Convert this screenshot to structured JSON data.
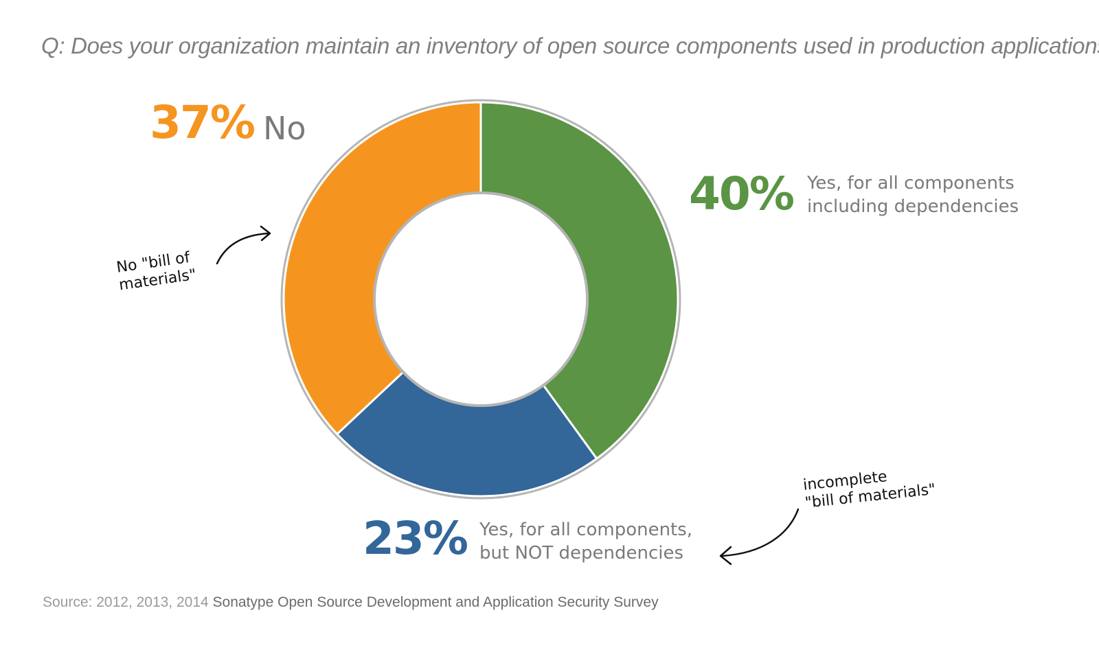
{
  "title": "Q: Does your organization maintain an inventory of open source components used in production applications?",
  "chart_data": {
    "type": "pie",
    "donut": true,
    "slices": [
      {
        "label": "Yes, for all components including dependencies",
        "label_lines": [
          "Yes, for all components",
          "including dependencies"
        ],
        "value": 40,
        "display": "40%",
        "color": "#5a9444"
      },
      {
        "label": "Yes, for all components, but NOT dependencies",
        "label_lines": [
          "Yes, for all components,",
          "but NOT dependencies"
        ],
        "value": 23,
        "display": "23%",
        "color": "#336699"
      },
      {
        "label": "No",
        "label_lines": [
          "No"
        ],
        "value": 37,
        "display": "37%",
        "color": "#f5951f"
      }
    ]
  },
  "annotations": {
    "no_bom": [
      "No \"bill of",
      "materials\""
    ],
    "incomplete_bom": [
      "incomplete",
      "\"bill of materials\""
    ]
  },
  "source": {
    "prefix": "Source: 2012, 2013, 2014",
    "name": "Sonatype Open Source Development and Application Security Survey"
  }
}
